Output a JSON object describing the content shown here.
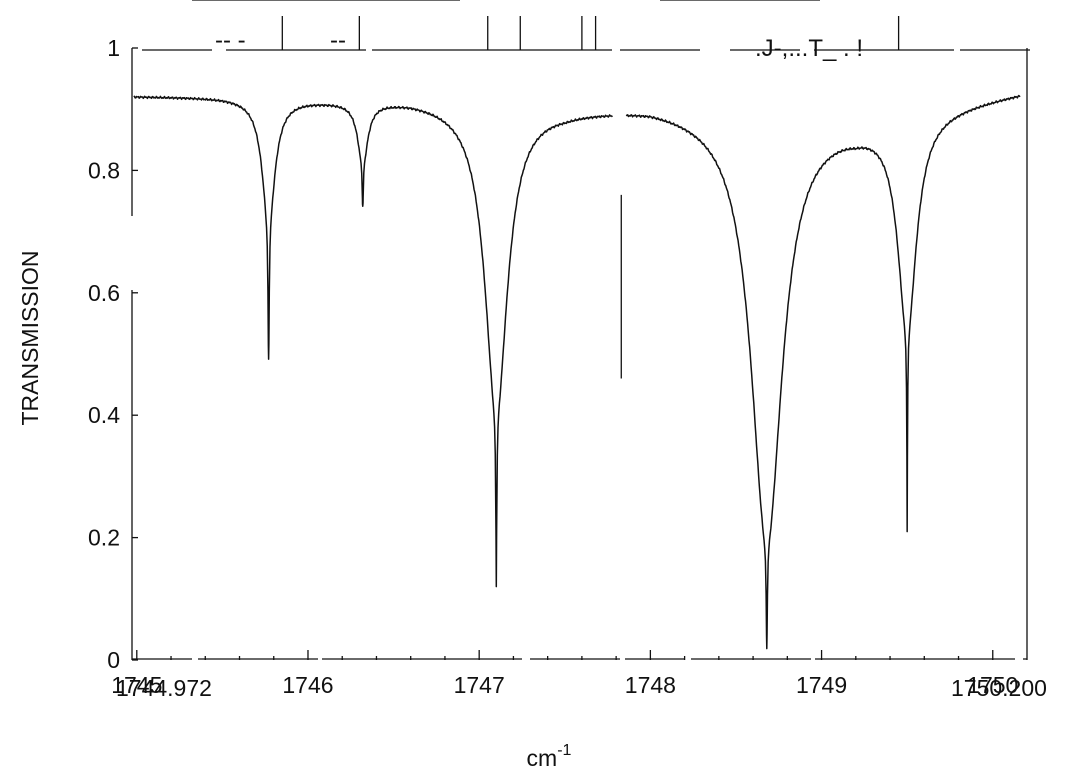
{
  "chart_data": {
    "type": "line",
    "title": "",
    "xlabel": "cm",
    "xlabel_superscript": "-1",
    "ylabel": "TRANSMISSION",
    "xlim": [
      1744.972,
      1750.2
    ],
    "ylim": [
      0,
      1
    ],
    "x_ticks": [
      1745,
      1746,
      1747,
      1748,
      1749,
      1750
    ],
    "y_ticks": [
      0,
      0.2,
      0.4,
      0.6,
      0.8,
      1
    ],
    "x_tick_labels": [
      "1745",
      "1746",
      "1747",
      "1748",
      "1749",
      "1750"
    ],
    "y_tick_labels": [
      "0",
      "0.2",
      "0.4",
      "0.6",
      "0.8",
      "1"
    ],
    "x_range_start_label": "1744.972",
    "x_range_end_label": "1750.200",
    "top_strip_text": [
      ".J-,...T_ . !"
    ],
    "grid": false,
    "legend": "none",
    "baseline_points": [
      [
        1744.972,
        0.922
      ],
      [
        1745.5,
        0.921
      ],
      [
        1746.1,
        0.917
      ],
      [
        1746.6,
        0.918
      ],
      [
        1747.5,
        0.903
      ],
      [
        1748.0,
        0.91
      ],
      [
        1749.2,
        0.882
      ],
      [
        1750.2,
        0.931
      ]
    ],
    "series": [
      {
        "absorption_lines": [
          {
            "x": 1745.77,
            "min": 0.49,
            "depth": 0.2,
            "width": 0.045
          },
          {
            "x": 1745.77,
            "min": 0.49,
            "depth": 0.23,
            "width": 0.004
          },
          {
            "x": 1746.32,
            "min": 0.74,
            "depth": 0.1,
            "width": 0.035
          },
          {
            "x": 1746.32,
            "min": 0.74,
            "depth": 0.08,
            "width": 0.003
          },
          {
            "x": 1747.1,
            "min": 0.12,
            "depth": 0.5,
            "width": 0.08
          },
          {
            "x": 1747.1,
            "min": 0.12,
            "depth": 0.24,
            "width": 0.004
          },
          {
            "x": 1748.68,
            "min": 0.02,
            "depth": 0.7,
            "width": 0.11
          },
          {
            "x": 1748.68,
            "min": 0.02,
            "depth": 0.17,
            "width": 0.004
          },
          {
            "x": 1749.5,
            "min": 0.21,
            "depth": 0.35,
            "width": 0.065
          },
          {
            "x": 1749.5,
            "min": 0.21,
            "depth": 0.25,
            "width": 0.003
          }
        ],
        "gap": [
          1747.78,
          1747.86
        ],
        "gap_marker_x": 1747.83,
        "gap_marker_range": [
          0.46,
          0.76
        ]
      }
    ],
    "top_strip_marker_x": [
      1745.85,
      1746.3,
      1747.05,
      1747.24,
      1747.6,
      1747.68,
      1749.45
    ]
  }
}
